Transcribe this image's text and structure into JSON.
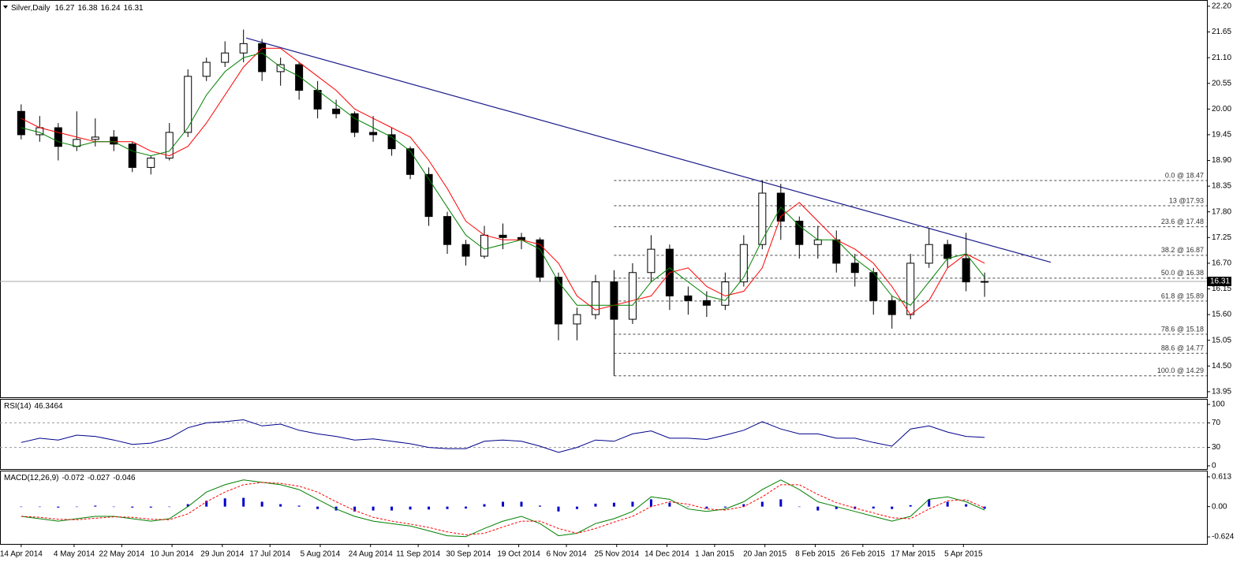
{
  "chart_data": [
    {
      "type": "candlestick",
      "header": {
        "symbol": "Silver,Daily",
        "open": 16.27,
        "high": 16.38,
        "low": 16.24,
        "close": 16.31
      },
      "xlim": [
        "6 Apr 2014",
        "6 Jul 2015"
      ],
      "x": [
        "14 Apr 2014",
        "21 Apr 2014",
        "28 Apr 2014",
        "5 May 2014",
        "12 May 2014",
        "19 May 2014",
        "26 May 2014",
        "2 Jun 2014",
        "9 Jun 2014",
        "16 Jun 2014",
        "23 Jun 2014",
        "30 Jun 2014",
        "7 Jul 2014",
        "14 Jul 2014",
        "21 Jul 2014",
        "28 Jul 2014",
        "4 Aug 2014",
        "11 Aug 2014",
        "18 Aug 2014",
        "25 Aug 2014",
        "1 Sep 2014",
        "8 Sep 2014",
        "15 Sep 2014",
        "22 Sep 2014",
        "29 Sep 2014",
        "6 Oct 2014",
        "13 Oct 2014",
        "20 Oct 2014",
        "27 Oct 2014",
        "3 Nov 2014",
        "10 Nov 2014",
        "17 Nov 2014",
        "24 Nov 2014",
        "1 Dec 2014",
        "8 Dec 2014",
        "15 Dec 2014",
        "22 Dec 2014",
        "29 Dec 2014",
        "5 Jan 2015",
        "12 Jan 2015",
        "19 Jan 2015",
        "26 Jan 2015",
        "2 Feb 2015",
        "9 Feb 2015",
        "16 Feb 2015",
        "23 Feb 2015",
        "2 Mar 2015",
        "9 Mar 2015",
        "16 Mar 2015",
        "23 Mar 2015",
        "30 Mar 2015",
        "6 Apr 2015",
        "13 Apr 2015"
      ],
      "open": [
        19.95,
        19.45,
        19.6,
        19.2,
        19.35,
        19.4,
        19.25,
        18.75,
        18.95,
        19.5,
        20.7,
        21.0,
        21.2,
        21.4,
        20.8,
        20.95,
        20.4,
        20.0,
        19.9,
        19.5,
        19.45,
        19.15,
        18.6,
        17.7,
        17.1,
        16.85,
        17.3,
        17.25,
        17.2,
        16.4,
        15.4,
        15.6,
        16.3,
        15.5,
        16.5,
        17.0,
        16.0,
        15.9,
        15.8,
        16.3,
        17.1,
        18.2,
        17.6,
        17.1,
        17.2,
        16.7,
        16.5,
        15.9,
        15.6,
        16.7,
        17.1,
        16.8,
        16.3
      ],
      "high": [
        20.1,
        19.85,
        19.7,
        19.95,
        19.8,
        19.55,
        19.3,
        19.0,
        19.7,
        20.85,
        21.1,
        21.45,
        21.7,
        21.5,
        21.1,
        21.0,
        20.6,
        20.2,
        19.95,
        19.85,
        19.6,
        19.2,
        18.75,
        17.8,
        17.2,
        17.5,
        17.55,
        17.35,
        17.25,
        16.5,
        15.75,
        16.45,
        16.55,
        16.7,
        17.3,
        17.1,
        16.2,
        16.1,
        16.5,
        17.3,
        18.47,
        18.4,
        17.7,
        17.5,
        17.4,
        16.9,
        16.6,
        16.0,
        16.9,
        17.45,
        17.2,
        17.35,
        16.5
      ],
      "low": [
        19.35,
        19.3,
        18.9,
        19.1,
        19.2,
        19.1,
        18.65,
        18.6,
        18.9,
        19.4,
        20.6,
        20.9,
        21.0,
        20.6,
        20.5,
        20.2,
        19.8,
        19.8,
        19.4,
        19.3,
        19.0,
        18.5,
        17.5,
        16.9,
        16.65,
        16.8,
        17.0,
        17.0,
        16.3,
        15.05,
        15.05,
        15.5,
        14.29,
        15.4,
        16.3,
        15.7,
        15.6,
        15.55,
        15.7,
        16.2,
        17.0,
        17.2,
        16.8,
        16.8,
        16.5,
        16.2,
        15.6,
        15.3,
        15.5,
        16.6,
        16.6,
        16.1,
        15.98
      ],
      "close": [
        19.45,
        19.6,
        19.2,
        19.35,
        19.4,
        19.25,
        18.75,
        18.95,
        19.5,
        20.7,
        21.0,
        21.2,
        21.4,
        20.8,
        20.95,
        20.4,
        20.0,
        19.9,
        19.5,
        19.45,
        19.15,
        18.6,
        17.7,
        17.1,
        16.85,
        17.3,
        17.25,
        17.2,
        16.4,
        15.4,
        15.6,
        16.3,
        15.5,
        16.5,
        17.0,
        16.0,
        15.9,
        15.8,
        16.3,
        17.1,
        18.2,
        17.6,
        17.1,
        17.2,
        16.7,
        16.5,
        15.9,
        15.6,
        16.7,
        17.1,
        16.8,
        16.3,
        16.31
      ],
      "up_color": "#ffffff",
      "down_color": "#000000",
      "overlays": [
        {
          "color": "#ff0000",
          "values": [
            19.8,
            19.6,
            19.5,
            19.4,
            19.3,
            19.3,
            19.3,
            19.1,
            19.0,
            19.2,
            19.7,
            20.3,
            20.9,
            21.3,
            21.3,
            21.0,
            20.7,
            20.4,
            20.0,
            19.8,
            19.6,
            19.4,
            18.9,
            18.3,
            17.6,
            17.3,
            17.2,
            17.2,
            17.1,
            16.7,
            16.0,
            15.7,
            15.8,
            15.9,
            16.0,
            16.5,
            16.6,
            16.2,
            16.0,
            16.1,
            16.6,
            17.7,
            18.0,
            17.6,
            17.2,
            17.0,
            16.7,
            16.2,
            15.6,
            15.9,
            16.6,
            16.9,
            16.7
          ]
        },
        {
          "color": "#008000",
          "values": [
            19.6,
            19.5,
            19.3,
            19.2,
            19.3,
            19.3,
            19.1,
            19.0,
            19.1,
            19.6,
            20.3,
            20.8,
            21.1,
            21.2,
            20.9,
            20.7,
            20.4,
            20.1,
            19.8,
            19.6,
            19.4,
            19.1,
            18.5,
            17.9,
            17.3,
            17.0,
            17.1,
            17.2,
            17.0,
            16.3,
            15.8,
            15.8,
            15.8,
            15.8,
            16.3,
            16.6,
            16.3,
            16.0,
            15.9,
            16.4,
            17.2,
            17.9,
            17.5,
            17.2,
            17.2,
            16.8,
            16.5,
            16.0,
            15.8,
            16.3,
            16.8,
            16.9,
            16.4
          ]
        }
      ],
      "trendline": {
        "color": "#1a1a8c",
        "x": [
          "8 Jul 2014",
          "8 May 2015"
        ],
        "values": [
          21.52,
          16.72
        ]
      },
      "fib": [
        {
          "value": 18.47,
          "label": "0.0 @ 18.47"
        },
        {
          "value": 17.93,
          "label": "13 @17.93"
        },
        {
          "value": 17.48,
          "label": "23.6 @ 17.48"
        },
        {
          "value": 16.87,
          "label": "38.2 @ 16.87"
        },
        {
          "value": 16.38,
          "label": "50.0 @ 16.38"
        },
        {
          "value": 15.89,
          "label": "61.8 @ 15.89"
        },
        {
          "value": 15.18,
          "label": "78.6 @ 15.18"
        },
        {
          "value": 14.77,
          "label": "88.6 @ 14.77"
        },
        {
          "value": 14.29,
          "label": "100.0 @ 14.29"
        }
      ],
      "ylim": [
        13.83,
        22.3
      ],
      "yticks": [
        {
          "value": 22.2,
          "label": "22.20"
        },
        21.65,
        {
          "value": 21.1,
          "label": "21.10"
        },
        20.55,
        {
          "value": 20,
          "label": "20.00"
        },
        19.45,
        {
          "value": 18.9,
          "label": "18.90"
        },
        18.35,
        {
          "value": 17.8,
          "label": "17.80"
        },
        17.25,
        {
          "value": 16.7,
          "label": "16.70"
        },
        16.15,
        {
          "value": 15.6,
          "label": "15.60"
        },
        15.05,
        {
          "value": 14.5,
          "label": "14.50"
        },
        13.95
      ]
    },
    {
      "type": "line",
      "title": "RSI(14)",
      "color": "#00008b",
      "values": [
        38,
        45,
        42,
        50,
        48,
        42,
        35,
        37,
        45,
        62,
        70,
        72,
        75,
        65,
        68,
        58,
        52,
        48,
        42,
        44,
        40,
        36,
        30,
        28,
        28,
        40,
        42,
        40,
        32,
        22,
        30,
        42,
        40,
        52,
        57,
        45,
        45,
        43,
        50,
        58,
        72,
        60,
        52,
        52,
        45,
        45,
        38,
        32,
        60,
        65,
        55,
        48,
        46.3464
      ],
      "levels": [
        70,
        30
      ],
      "ylim": [
        -6.5,
        107.8
      ],
      "yticks": [
        100,
        70,
        30,
        0
      ]
    },
    {
      "type": "bar",
      "title": "MACD(12,26,9)",
      "color": "#0000cd",
      "values": [
        0,
        0,
        -0.02,
        0,
        0.02,
        0,
        -0.02,
        -0.02,
        0,
        0.05,
        0.12,
        0.17,
        0.18,
        0.1,
        0.05,
        0.02,
        -0.05,
        -0.08,
        -0.1,
        -0.08,
        -0.08,
        -0.06,
        -0.06,
        -0.05,
        -0.04,
        0.05,
        0.1,
        0.1,
        0.02,
        -0.1,
        -0.05,
        0.06,
        0.08,
        0.1,
        0.15,
        0.08,
        0.0,
        -0.04,
        -0.02,
        0.05,
        0.1,
        0.15,
        0.0,
        -0.08,
        -0.05,
        -0.05,
        -0.04,
        -0.05,
        0.03,
        0.15,
        0.1,
        0.05,
        -0.046
      ],
      "lines": [
        {
          "color": "#008000",
          "dashed": false,
          "values": [
            -0.2,
            -0.25,
            -0.3,
            -0.25,
            -0.2,
            -0.2,
            -0.25,
            -0.3,
            -0.25,
            0.0,
            0.3,
            0.45,
            0.55,
            0.5,
            0.45,
            0.35,
            0.15,
            -0.05,
            -0.2,
            -0.3,
            -0.35,
            -0.4,
            -0.5,
            -0.6,
            -0.62,
            -0.45,
            -0.3,
            -0.2,
            -0.35,
            -0.6,
            -0.55,
            -0.35,
            -0.25,
            -0.1,
            0.2,
            0.15,
            -0.05,
            -0.1,
            -0.05,
            0.1,
            0.35,
            0.55,
            0.35,
            0.1,
            0.0,
            -0.1,
            -0.2,
            -0.3,
            -0.2,
            0.15,
            0.2,
            0.1,
            -0.072
          ]
        },
        {
          "color": "#ff0000",
          "dashed": true,
          "values": [
            -0.2,
            -0.22,
            -0.26,
            -0.27,
            -0.24,
            -0.21,
            -0.22,
            -0.26,
            -0.27,
            -0.15,
            0.1,
            0.3,
            0.45,
            0.5,
            0.48,
            0.42,
            0.3,
            0.1,
            -0.08,
            -0.22,
            -0.3,
            -0.36,
            -0.43,
            -0.52,
            -0.58,
            -0.55,
            -0.42,
            -0.3,
            -0.3,
            -0.45,
            -0.55,
            -0.45,
            -0.32,
            -0.2,
            0.0,
            0.1,
            0.05,
            -0.05,
            -0.07,
            0.0,
            0.2,
            0.45,
            0.45,
            0.25,
            0.08,
            -0.03,
            -0.13,
            -0.23,
            -0.25,
            -0.05,
            0.12,
            0.14,
            -0.027
          ]
        }
      ],
      "ylim": [
        -0.769,
        0.709
      ],
      "yticks": [
        0.613,
        {
          "value": 0,
          "label": "0.00"
        },
        -0.624
      ],
      "xticks": [
        "14 Apr 2014",
        "4 May 2014",
        "22 May 2014",
        "10 Jun 2014",
        "29 Jun 2014",
        "17 Jul 2014",
        "5 Aug 2014",
        "24 Aug 2014",
        "11 Sep 2014",
        "30 Sep 2014",
        "19 Oct 2014",
        "6 Nov 2014",
        "25 Nov 2014",
        "14 Dec 2014",
        "1 Jan 2015",
        "20 Jan 2015",
        "8 Feb 2015",
        "26 Feb 2015",
        "17 Mar 2015",
        "5 Apr 2015"
      ]
    }
  ]
}
